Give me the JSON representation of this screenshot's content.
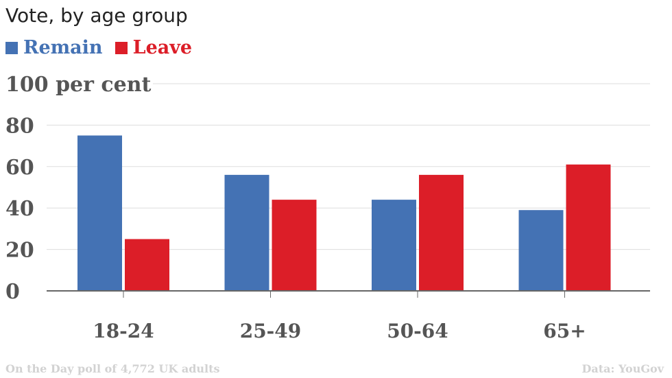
{
  "colors": {
    "remain": "#4472b4",
    "leave": "#dc1e28",
    "grid": "#dddddd",
    "axis": "#666666"
  },
  "chart_data": {
    "type": "bar",
    "title": "Vote, by age group",
    "categories": [
      "18-24",
      "25-49",
      "50-64",
      "65+"
    ],
    "series": [
      {
        "name": "Remain",
        "values": [
          75,
          56,
          44,
          39
        ]
      },
      {
        "name": "Leave",
        "values": [
          25,
          44,
          56,
          61
        ]
      }
    ],
    "ylim": [
      0,
      100
    ],
    "yticks": [
      "0",
      "20",
      "40",
      "60",
      "80",
      "100 per cent"
    ],
    "ytick_values": [
      0,
      20,
      40,
      60,
      80,
      100
    ],
    "grid": true,
    "legend": "top-left",
    "footnote": "On the Day poll of 4,772 UK adults",
    "source": "Data: YouGov"
  }
}
